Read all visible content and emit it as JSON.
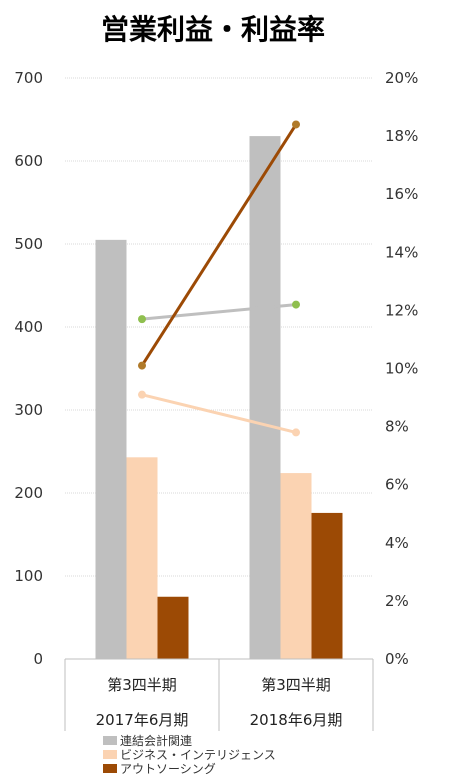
{
  "chart_data": {
    "type": "bar",
    "title": "営業利益・利益率",
    "categories": [
      {
        "line1": "第3四半期",
        "line2": "2017年6月期"
      },
      {
        "line1": "第3四半期",
        "line2": "2018年6月期"
      }
    ],
    "y_left": {
      "min": 0,
      "max": 700,
      "ticks": [
        "0",
        "100",
        "200",
        "300",
        "400",
        "500",
        "600",
        "700"
      ]
    },
    "y_right": {
      "min": 0,
      "max": 0.2,
      "ticks": [
        "0%",
        "2%",
        "4%",
        "6%",
        "8%",
        "10%",
        "12%",
        "14%",
        "16%",
        "18%",
        "20%"
      ]
    },
    "series": [
      {
        "name": "連結会計関連",
        "bar_color": "#bfbfbf",
        "line_color": "#bfbfbf",
        "marker_color": "#8fbf4f",
        "values": [
          505,
          630
        ],
        "rates": [
          0.117,
          0.122
        ]
      },
      {
        "name": "ビジネス・インテリジェンス",
        "bar_color": "#fbd3b2",
        "line_color": "#fbd3b2",
        "marker_color": "#fbd3b2",
        "values": [
          243,
          224
        ],
        "rates": [
          0.091,
          0.078
        ]
      },
      {
        "name": "アウトソーシング",
        "bar_color": "#9c4a05",
        "line_color": "#9c4a05",
        "marker_color": "#b07a2a",
        "values": [
          75,
          176
        ],
        "rates": [
          0.101,
          0.184
        ]
      }
    ],
    "grid": true,
    "legend_position": "bottom-left"
  }
}
